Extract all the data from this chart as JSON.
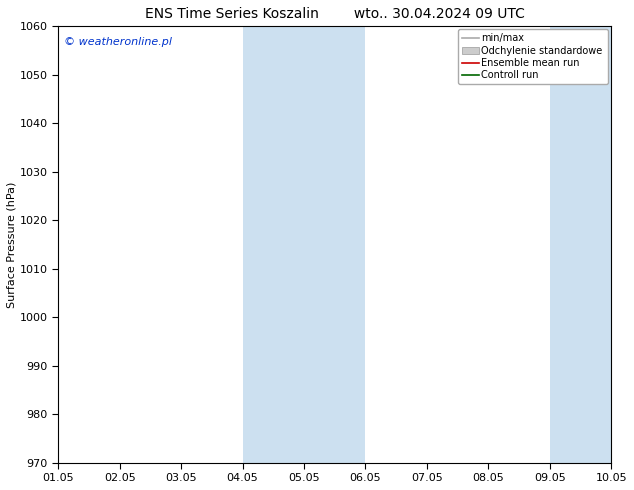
{
  "title_left": "ENS Time Series Koszalin",
  "title_right": "wto.. 30.04.2024 09 UTC",
  "ylabel": "Surface Pressure (hPa)",
  "ylim": [
    970,
    1060
  ],
  "yticks": [
    970,
    980,
    990,
    1000,
    1010,
    1020,
    1030,
    1040,
    1050,
    1060
  ],
  "xlim": [
    0,
    9
  ],
  "xtick_positions": [
    0,
    1,
    2,
    3,
    4,
    5,
    6,
    7,
    8,
    9
  ],
  "xtick_labels": [
    "01.05",
    "02.05",
    "03.05",
    "04.05",
    "05.05",
    "06.05",
    "07.05",
    "08.05",
    "09.05",
    "10.05"
  ],
  "shaded_bands": [
    {
      "xmin": 3.0,
      "xmax": 5.0
    },
    {
      "xmin": 8.0,
      "xmax": 9.0
    }
  ],
  "band_color": "#cce0f0",
  "legend_entries": [
    {
      "label": "min/max",
      "color": "#aaaaaa",
      "lw": 1.2,
      "type": "line"
    },
    {
      "label": "Odchylenie standardowe",
      "color": "#cccccc",
      "lw": 8,
      "type": "patch"
    },
    {
      "label": "Ensemble mean run",
      "color": "#cc0000",
      "lw": 1.2,
      "type": "line"
    },
    {
      "label": "Controll run",
      "color": "#006600",
      "lw": 1.2,
      "type": "line"
    }
  ],
  "watermark": "© weatheronline.pl",
  "watermark_color": "#0033cc",
  "bg_color": "#ffffff",
  "title_fontsize": 10,
  "axis_label_fontsize": 8,
  "tick_fontsize": 8,
  "legend_fontsize": 7,
  "watermark_fontsize": 8
}
